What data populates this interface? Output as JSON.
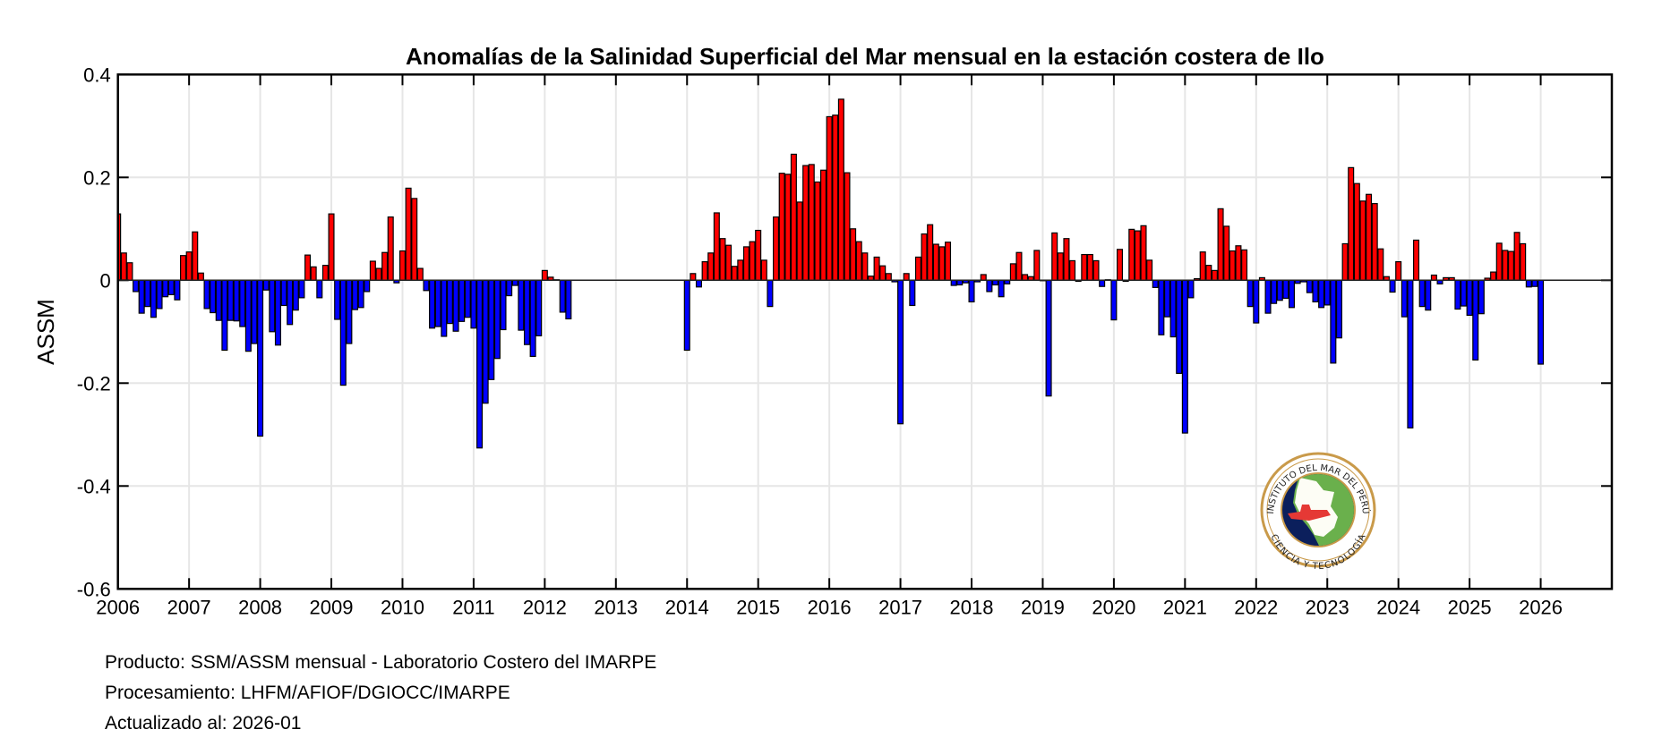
{
  "chart_data": {
    "type": "bar",
    "title": "Anomalías de la Salinidad Superficial del Mar mensual en la estación costera de Ilo",
    "xlabel": "",
    "ylabel": "ASSM",
    "x_start": "2006-01",
    "x_step": "month",
    "xlim": [
      2006,
      2027
    ],
    "ylim": [
      -0.6,
      0.4
    ],
    "grid": true,
    "yticks": [
      "-0.6",
      "-0.4",
      "-0.2",
      "0",
      "0.2",
      "0.4"
    ],
    "ytick_values": [
      -0.6,
      -0.4,
      -0.2,
      0,
      0.2,
      0.4
    ],
    "xticks": [
      "2006",
      "2007",
      "2008",
      "2009",
      "2010",
      "2011",
      "2012",
      "2013",
      "2014",
      "2015",
      "2016",
      "2017",
      "2018",
      "2019",
      "2020",
      "2021",
      "2022",
      "2023",
      "2024",
      "2025",
      "2026"
    ],
    "colors": {
      "positive": "#ff0000",
      "negative": "#0000ff",
      "edge": "#000000",
      "grid": "#e6e6e6"
    },
    "values": [
      0.129,
      0.053,
      0.034,
      -0.022,
      -0.064,
      -0.051,
      -0.072,
      -0.055,
      -0.032,
      -0.028,
      -0.038,
      0.048,
      0.055,
      0.094,
      0.014,
      -0.055,
      -0.063,
      -0.078,
      -0.136,
      -0.078,
      -0.079,
      -0.09,
      -0.138,
      -0.123,
      -0.303,
      -0.019,
      -0.1,
      -0.126,
      -0.049,
      -0.086,
      -0.058,
      -0.034,
      0.049,
      0.026,
      -0.034,
      0.029,
      0.129,
      -0.076,
      -0.204,
      -0.123,
      -0.057,
      -0.053,
      -0.022,
      0.037,
      0.023,
      0.054,
      0.123,
      -0.005,
      0.057,
      0.179,
      0.159,
      0.023,
      -0.02,
      -0.093,
      -0.09,
      -0.109,
      -0.084,
      -0.099,
      -0.08,
      -0.072,
      -0.093,
      -0.326,
      -0.239,
      -0.193,
      -0.152,
      -0.096,
      -0.03,
      -0.01,
      -0.097,
      -0.125,
      -0.148,
      -0.108,
      0.019,
      0.006,
      0.001,
      -0.062,
      -0.075,
      null,
      null,
      null,
      null,
      null,
      null,
      null,
      null,
      null,
      null,
      null,
      null,
      null,
      null,
      null,
      null,
      null,
      null,
      null,
      -0.136,
      0.013,
      -0.013,
      0.036,
      0.053,
      0.131,
      0.081,
      0.068,
      0.027,
      0.039,
      0.065,
      0.075,
      0.097,
      0.039,
      -0.051,
      0.123,
      0.208,
      0.206,
      0.245,
      0.152,
      0.223,
      0.225,
      0.191,
      0.214,
      0.318,
      0.321,
      0.352,
      0.209,
      0.1,
      0.075,
      0.053,
      0.008,
      0.045,
      0.028,
      0.013,
      -0.003,
      -0.279,
      0.013,
      -0.049,
      0.045,
      0.09,
      0.108,
      0.07,
      0.065,
      0.074,
      -0.01,
      -0.009,
      -0.005,
      -0.042,
      -0.003,
      0.011,
      -0.022,
      -0.009,
      -0.032,
      -0.007,
      0.032,
      0.054,
      0.011,
      0.007,
      0.058,
      0.0,
      -0.225,
      0.092,
      0.053,
      0.081,
      0.038,
      -0.002,
      0.05,
      0.05,
      0.038,
      -0.012,
      0.001,
      -0.077,
      0.06,
      -0.002,
      0.099,
      0.096,
      0.106,
      0.039,
      -0.014,
      -0.106,
      -0.071,
      -0.11,
      -0.181,
      -0.297,
      -0.034,
      0.003,
      0.055,
      0.029,
      0.019,
      0.139,
      0.105,
      0.057,
      0.067,
      0.059,
      -0.051,
      -0.083,
      0.005,
      -0.064,
      -0.045,
      -0.039,
      -0.035,
      -0.053,
      -0.006,
      -0.003,
      -0.024,
      -0.042,
      -0.053,
      -0.048,
      -0.161,
      -0.112,
      0.071,
      0.219,
      0.188,
      0.154,
      0.167,
      0.149,
      0.061,
      0.007,
      -0.023,
      0.036,
      -0.071,
      -0.287,
      0.078,
      -0.051,
      -0.058,
      0.01,
      -0.007,
      0.005,
      0.005,
      -0.056,
      -0.05,
      -0.068,
      -0.155,
      -0.065,
      0.004,
      0.016,
      0.072,
      0.058,
      0.056,
      0.093,
      0.071,
      -0.013,
      -0.012,
      -0.163
    ]
  },
  "logo": {
    "top_text": "INSTITUTO DEL MAR DEL PERÚ",
    "bottom_text": "CIENCIA Y TECNOLOGÍA"
  },
  "footer": {
    "line1": "Producto: SSM/ASSM mensual - Laboratorio Costero del IMARPE",
    "line2": "Procesamiento: LHFM/AFIOF/DGIOCC/IMARPE",
    "line3": "Actualizado al: 2026-01"
  }
}
